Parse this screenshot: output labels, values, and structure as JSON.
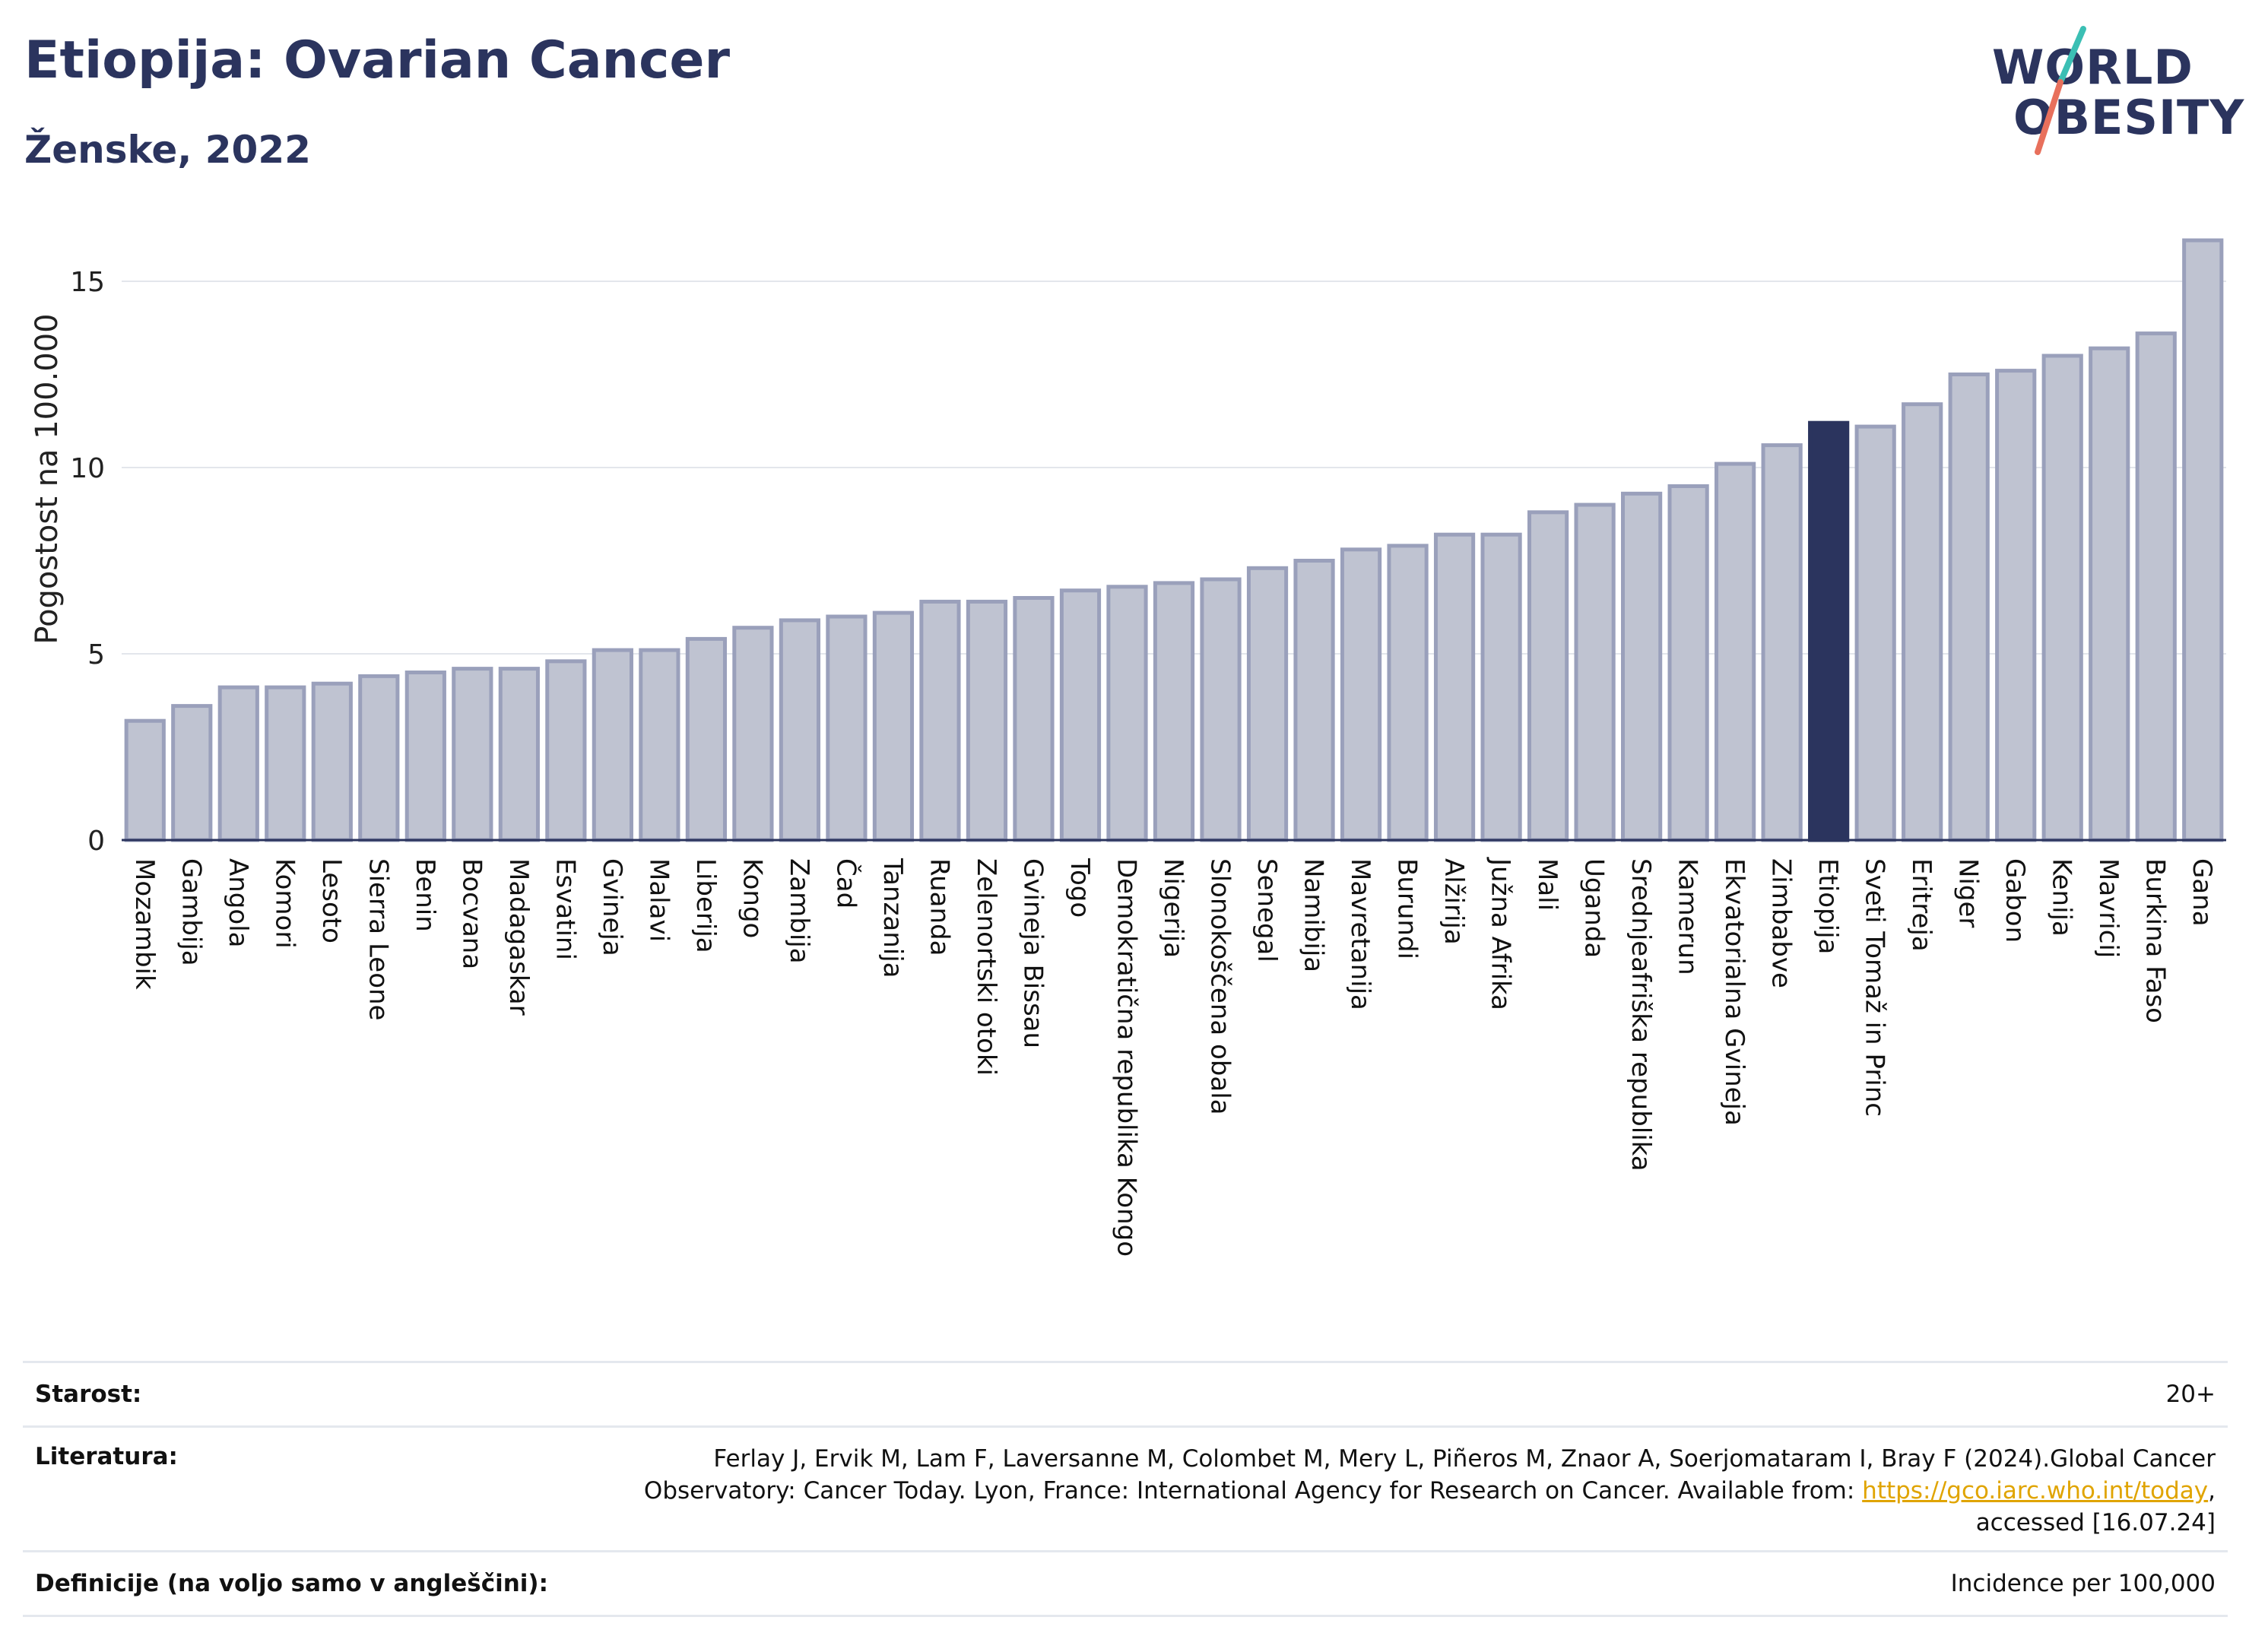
{
  "title": "Etiopija: Ovarian Cancer",
  "subtitle": "Ženske, 2022",
  "logo": {
    "line1": "WORLD",
    "line2": "OBESITY"
  },
  "colors": {
    "bar": "#bfc3d1",
    "bar_edge": "#9aa0bb",
    "highlight": "#2b345e",
    "text": "#2b345e",
    "link": "#e0a400"
  },
  "chart_data": {
    "type": "bar",
    "title": "Etiopija: Ovarian Cancer",
    "subtitle": "Ženske, 2022",
    "ylabel": "Pogostost na 100.000",
    "xlabel": "",
    "ylim": [
      0,
      16.5
    ],
    "yticks": [
      0,
      5,
      10,
      15
    ],
    "grid": true,
    "highlight": "Etiopija",
    "categories": [
      "Mozambik",
      "Gambija",
      "Angola",
      "Komori",
      "Lesoto",
      "Sierra Leone",
      "Benin",
      "Bocvana",
      "Madagaskar",
      "Esvatini",
      "Gvineja",
      "Malavi",
      "Liberija",
      "Kongo",
      "Zambija",
      "Čad",
      "Tanzanija",
      "Ruanda",
      "Zelenortski otoki",
      "Gvineja Bissau",
      "Togo",
      "Demokratična republika Kongo",
      "Nigerija",
      "Slonokoščena obala",
      "Senegal",
      "Namibija",
      "Mavretanija",
      "Burundi",
      "Alžirija",
      "Južna Afrika",
      "Mali",
      "Uganda",
      "Srednjeafriška republika",
      "Kamerun",
      "Ekvatorialna Gvineja",
      "Zimbabve",
      "Etiopija",
      "Sveti Tomaž in Princ",
      "Eritreja",
      "Niger",
      "Gabon",
      "Kenija",
      "Mavricij",
      "Burkina Faso",
      "Gana"
    ],
    "values": [
      3.2,
      3.6,
      4.1,
      4.1,
      4.2,
      4.4,
      4.5,
      4.6,
      4.6,
      4.8,
      5.1,
      5.1,
      5.4,
      5.7,
      5.9,
      6.0,
      6.1,
      6.4,
      6.4,
      6.5,
      6.7,
      6.8,
      6.9,
      7.0,
      7.3,
      7.5,
      7.8,
      7.9,
      8.2,
      8.2,
      8.8,
      9.0,
      9.3,
      9.5,
      10.1,
      10.6,
      11.2,
      11.1,
      11.7,
      12.5,
      12.6,
      13.0,
      13.2,
      13.6,
      16.1
    ]
  },
  "meta": {
    "age_label": "Starost:",
    "age_value": "20+",
    "lit_label": "Literatura:",
    "lit_line1": "Ferlay J, Ervik M, Lam F, Laversanne M, Colombet M, Mery L, Piñeros M, Znaor A, Soerjomataram I, Bray F (2024).Global Cancer",
    "lit_line2_pre": "Observatory: Cancer Today. Lyon, France: International Agency for Research on Cancer. Available from: ",
    "lit_link": "https://gco.iarc.who.int/today",
    "lit_line2_post": ",",
    "lit_line3": "accessed [16.07.24]",
    "def_label": "Definicije (na voljo samo v angleščini):",
    "def_value": "Incidence per 100,000"
  }
}
